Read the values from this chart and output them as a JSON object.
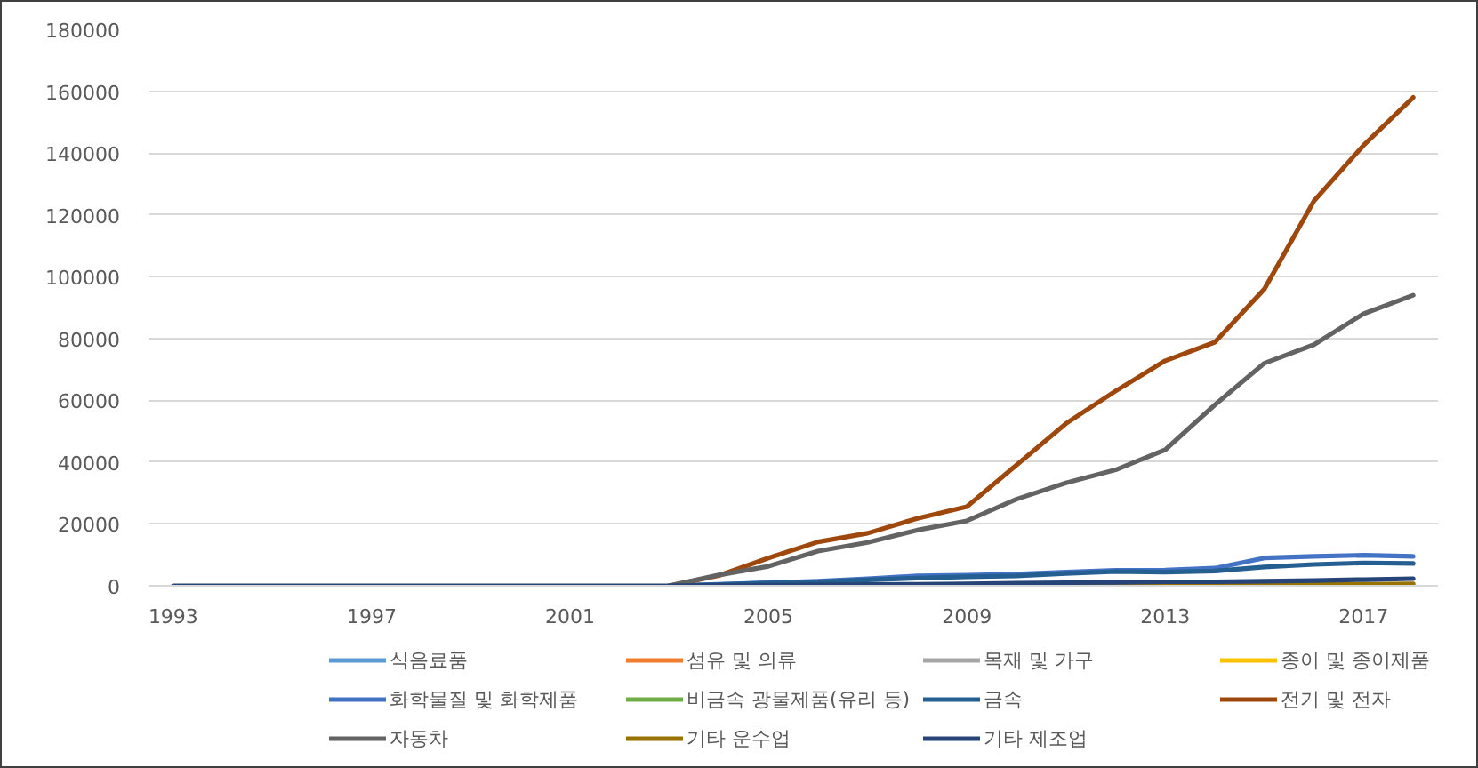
{
  "chart_data": {
    "type": "line",
    "x": [
      1993,
      1994,
      1995,
      1996,
      1997,
      1998,
      1999,
      2000,
      2001,
      2002,
      2003,
      2004,
      2005,
      2006,
      2007,
      2008,
      2009,
      2010,
      2011,
      2012,
      2013,
      2014,
      2015,
      2016,
      2017,
      2018
    ],
    "xlim": [
      1992.5,
      2018.5
    ],
    "xticks": [
      1993,
      1997,
      2001,
      2005,
      2009,
      2013,
      2017
    ],
    "ylim": [
      0,
      180000
    ],
    "yticks": [
      0,
      20000,
      40000,
      60000,
      80000,
      100000,
      120000,
      140000,
      160000,
      180000
    ],
    "grid": "y",
    "legend": "bottom",
    "series": [
      {
        "name": "식음료품",
        "color": "#5b9bd5",
        "values": [
          null,
          null,
          null,
          null,
          null,
          null,
          null,
          null,
          null,
          null,
          null,
          null,
          null,
          null,
          null,
          null,
          null,
          null,
          null,
          null,
          null,
          null,
          null,
          null,
          null,
          null
        ]
      },
      {
        "name": "섬유 및 의류",
        "color": "#ed7d31",
        "values": [
          null,
          null,
          null,
          null,
          null,
          null,
          null,
          null,
          null,
          null,
          null,
          null,
          null,
          null,
          null,
          null,
          null,
          null,
          null,
          null,
          null,
          null,
          null,
          null,
          null,
          null
        ]
      },
      {
        "name": "목재 및 가구",
        "color": "#a5a5a5",
        "values": [
          null,
          null,
          null,
          null,
          null,
          null,
          null,
          null,
          null,
          null,
          null,
          null,
          null,
          null,
          null,
          null,
          null,
          null,
          null,
          null,
          null,
          null,
          null,
          null,
          null,
          null
        ]
      },
      {
        "name": "종이 및 종이제품",
        "color": "#ffc000",
        "values": [
          null,
          null,
          null,
          null,
          null,
          null,
          null,
          null,
          null,
          null,
          null,
          null,
          null,
          null,
          null,
          null,
          null,
          null,
          null,
          null,
          null,
          null,
          null,
          null,
          null,
          null
        ]
      },
      {
        "name": "화학물질 및 화학제품",
        "color": "#4472c4",
        "values": [
          null,
          null,
          null,
          null,
          null,
          null,
          null,
          null,
          null,
          null,
          0,
          500,
          1000,
          1500,
          2300,
          3200,
          3400,
          3800,
          4400,
          5000,
          5100,
          5700,
          9000,
          9500,
          9900,
          9500
        ]
      },
      {
        "name": "비금속 광물제품(유리 등)",
        "color": "#70ad47",
        "values": [
          null,
          null,
          null,
          null,
          null,
          null,
          null,
          null,
          null,
          null,
          null,
          null,
          null,
          null,
          null,
          null,
          null,
          null,
          null,
          null,
          null,
          null,
          null,
          null,
          null,
          null
        ]
      },
      {
        "name": "금속",
        "color": "#255e91",
        "values": [
          null,
          null,
          null,
          null,
          null,
          null,
          null,
          null,
          null,
          null,
          0,
          400,
          900,
          1300,
          1900,
          2500,
          2900,
          3200,
          4000,
          4600,
          4400,
          4800,
          6100,
          6900,
          7400,
          7200
        ]
      },
      {
        "name": "전기 및 전자",
        "color": "#9e480e",
        "values": [
          null,
          null,
          null,
          null,
          null,
          null,
          null,
          null,
          null,
          null,
          0,
          3300,
          9000,
          14200,
          17000,
          21800,
          25600,
          39000,
          52500,
          63000,
          72800,
          78800,
          96000,
          124500,
          142500,
          158000
        ]
      },
      {
        "name": "자동차",
        "color": "#636363",
        "values": [
          null,
          null,
          null,
          null,
          null,
          null,
          null,
          null,
          null,
          null,
          0,
          3500,
          6300,
          11200,
          14000,
          18000,
          21000,
          28000,
          33300,
          37500,
          44000,
          58500,
          72000,
          78000,
          88000,
          94000
        ]
      },
      {
        "name": "기타 운수업",
        "color": "#997300",
        "values": [
          null,
          null,
          null,
          null,
          null,
          null,
          null,
          null,
          null,
          null,
          null,
          null,
          null,
          null,
          null,
          null,
          null,
          null,
          0,
          0,
          100,
          200,
          300,
          400,
          500,
          600
        ]
      },
      {
        "name": "기타 제조업",
        "color": "#264478",
        "values": [
          0,
          0,
          0,
          0,
          0,
          0,
          0,
          0,
          0,
          0,
          0,
          100,
          200,
          300,
          400,
          500,
          600,
          800,
          1000,
          1100,
          1300,
          1300,
          1500,
          1700,
          2000,
          2300
        ]
      }
    ]
  }
}
